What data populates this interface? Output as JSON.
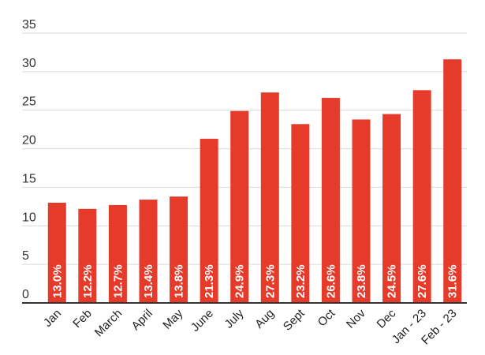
{
  "chart_data": {
    "type": "bar",
    "title": "",
    "xlabel": "",
    "ylabel": "",
    "categories": [
      "Jan",
      "Feb",
      "March",
      "April",
      "May",
      "June",
      "July",
      "Aug",
      "Sept",
      "Oct",
      "Nov",
      "Dec",
      "Jan - 23",
      "Feb - 23"
    ],
    "values": [
      13.0,
      12.2,
      12.7,
      13.4,
      13.8,
      21.3,
      24.9,
      27.3,
      23.2,
      26.6,
      23.8,
      24.5,
      27.6,
      31.6
    ],
    "data_labels": [
      "13.0%",
      "12.2%",
      "12.7%",
      "13.4%",
      "13.8%",
      "21.3%",
      "24.9%",
      "27.3%",
      "23.2%",
      "26.6%",
      "23.8%",
      "24.5%",
      "27.6%",
      "31.6%"
    ],
    "ylim": [
      0,
      35
    ],
    "yticks": [
      "0",
      "5",
      "10",
      "15",
      "20",
      "25",
      "30",
      "35"
    ],
    "yticks_values": [
      0,
      5,
      10,
      15,
      20,
      25,
      30,
      35
    ],
    "grid": true,
    "bar_color": "#e63a2b",
    "legend": "none"
  }
}
